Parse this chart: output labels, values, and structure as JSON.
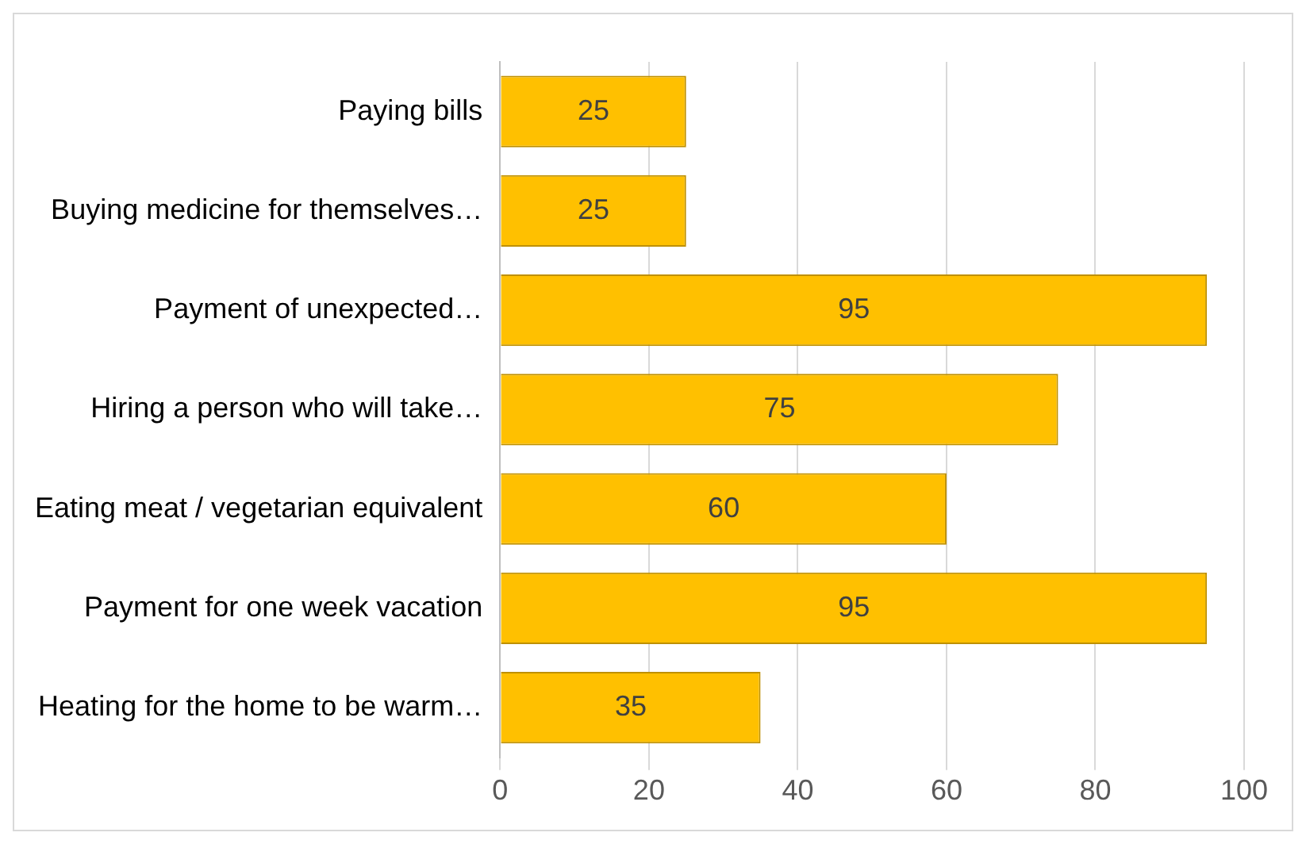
{
  "chart_data": {
    "type": "bar",
    "orientation": "horizontal",
    "categories": [
      "Paying bills",
      "Buying medicine for themselves…",
      "Payment of unexpected…",
      "Hiring a person who will take…",
      "Eating meat / vegetarian equivalent",
      "Payment for one week vacation",
      "Heating for the home to be warm…"
    ],
    "values": [
      25,
      25,
      95,
      75,
      60,
      95,
      35
    ],
    "color": "#ffc000",
    "xlim": [
      0,
      100
    ],
    "xticks": [
      0,
      20,
      40,
      60,
      80,
      100
    ],
    "grid": "x",
    "legend": false,
    "data_labels": true
  }
}
